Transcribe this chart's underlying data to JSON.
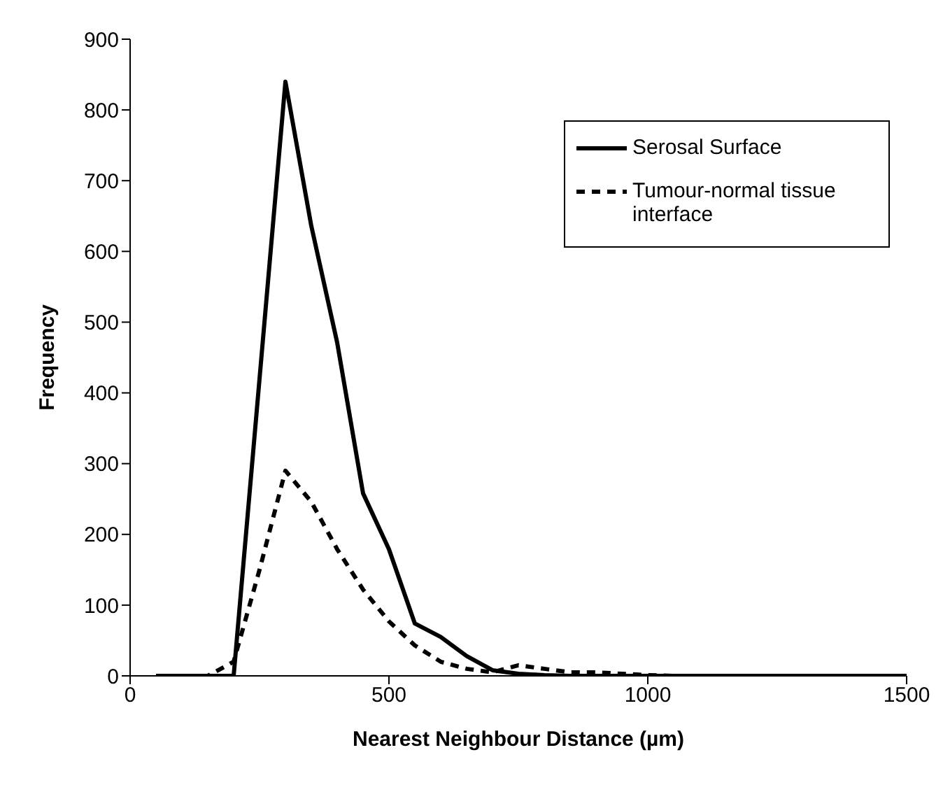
{
  "chart_data": {
    "type": "line",
    "xlabel": "Nearest Neighbour Distance (µm)",
    "ylabel": "Frequency",
    "x": [
      50,
      100,
      150,
      200,
      250,
      300,
      350,
      400,
      450,
      500,
      550,
      600,
      650,
      700,
      750,
      800,
      850,
      900,
      950,
      1000,
      1050,
      1100,
      1150,
      1200,
      1250,
      1300,
      1350,
      1400,
      1450,
      1500
    ],
    "series": [
      {
        "name": "Serosal Surface",
        "color": "#000000",
        "line_style": "solid",
        "values": [
          0,
          0,
          0,
          0,
          420,
          840,
          636,
          471,
          258,
          179,
          74,
          55,
          28,
          8,
          3,
          1,
          0,
          0,
          0,
          0,
          0,
          0,
          0,
          0,
          0,
          0,
          0,
          0,
          0,
          0
        ]
      },
      {
        "name": "Tumour-normal tissue interface",
        "color": "#000000",
        "line_style": "dashed",
        "values": [
          0,
          0,
          0,
          20,
          150,
          290,
          246,
          179,
          122,
          77,
          43,
          20,
          10,
          5,
          15,
          10,
          5,
          5,
          3,
          1,
          0,
          0,
          0,
          0,
          0,
          0,
          0,
          0,
          0,
          0
        ]
      }
    ],
    "xlim": [
      0,
      1500
    ],
    "xticks": [
      0,
      500,
      1000,
      1500
    ],
    "ylim": [
      0,
      900
    ],
    "yticks": [
      0,
      100,
      200,
      300,
      400,
      500,
      600,
      700,
      800,
      900
    ],
    "grid": false,
    "legend": "top right",
    "marker": "none"
  }
}
